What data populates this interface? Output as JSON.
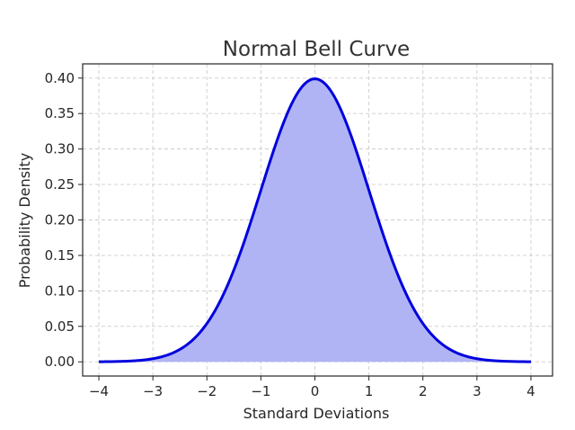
{
  "chart_data": {
    "type": "area",
    "title": "Normal Bell Curve",
    "xlabel": "Standard Deviations",
    "ylabel": "Probability Density",
    "xlim": [
      -4.3,
      4.4
    ],
    "ylim": [
      -0.02,
      0.42
    ],
    "x_ticks": [
      -4,
      -3,
      -2,
      -1,
      0,
      1,
      2,
      3,
      4
    ],
    "x_tick_labels": [
      "−4",
      "−3",
      "−2",
      "−1",
      "0",
      "1",
      "2",
      "3",
      "4"
    ],
    "y_ticks": [
      0.0,
      0.05,
      0.1,
      0.15,
      0.2,
      0.25,
      0.3,
      0.35,
      0.4
    ],
    "y_tick_labels": [
      "0.00",
      "0.05",
      "0.10",
      "0.15",
      "0.20",
      "0.25",
      "0.30",
      "0.35",
      "0.40"
    ],
    "grid": true,
    "series": [
      {
        "x": [
          -4.0,
          -3.5,
          -3.0,
          -2.5,
          -2.0,
          -1.5,
          -1.0,
          -0.5,
          0.0,
          0.5,
          1.0,
          1.5,
          2.0,
          2.5,
          3.0,
          3.5,
          4.0
        ],
        "y": [
          0.0001,
          0.0009,
          0.0044,
          0.0175,
          0.054,
          0.1295,
          0.242,
          0.3521,
          0.3989,
          0.3521,
          0.242,
          0.1295,
          0.054,
          0.0175,
          0.0044,
          0.0009,
          0.0001
        ],
        "color": "#0000dd",
        "fill_color": "#b0b4f4"
      }
    ]
  }
}
